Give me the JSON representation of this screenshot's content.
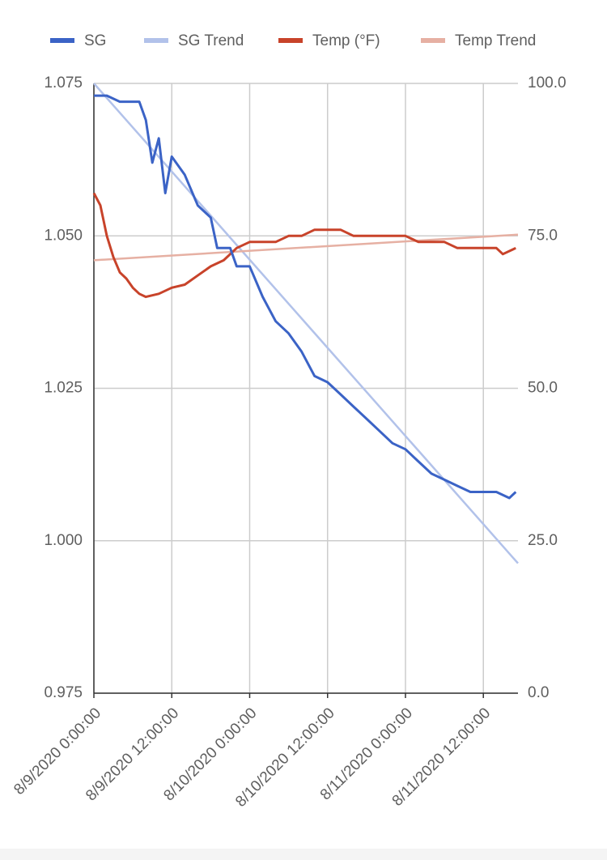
{
  "chart_data": {
    "type": "line",
    "series": [
      {
        "name": "SG",
        "color": "#3b63c6",
        "axis": "y",
        "width": 3,
        "x": [
          "8/9/2020 0:00:00",
          "8/9/2020 2:00:00",
          "8/9/2020 4:00:00",
          "8/9/2020 6:00:00",
          "8/9/2020 7:00:00",
          "8/9/2020 8:00:00",
          "8/9/2020 9:00:00",
          "8/9/2020 10:00:00",
          "8/9/2020 11:00:00",
          "8/9/2020 12:00:00",
          "8/9/2020 14:00:00",
          "8/9/2020 16:00:00",
          "8/9/2020 18:00:00",
          "8/9/2020 19:00:00",
          "8/9/2020 20:00:00",
          "8/9/2020 21:00:00",
          "8/9/2020 22:00:00",
          "8/10/2020 0:00:00",
          "8/10/2020 2:00:00",
          "8/10/2020 4:00:00",
          "8/10/2020 6:00:00",
          "8/10/2020 8:00:00",
          "8/10/2020 10:00:00",
          "8/10/2020 12:00:00",
          "8/10/2020 14:00:00",
          "8/10/2020 16:00:00",
          "8/10/2020 18:00:00",
          "8/10/2020 20:00:00",
          "8/10/2020 22:00:00",
          "8/11/2020 0:00:00",
          "8/11/2020 2:00:00",
          "8/11/2020 4:00:00",
          "8/11/2020 6:00:00",
          "8/11/2020 8:00:00",
          "8/11/2020 10:00:00",
          "8/11/2020 12:00:00",
          "8/11/2020 14:00:00",
          "8/11/2020 16:00:00",
          "8/11/2020 17:00:00"
        ],
        "values": [
          1.073,
          1.073,
          1.072,
          1.072,
          1.072,
          1.069,
          1.062,
          1.066,
          1.057,
          1.063,
          1.06,
          1.055,
          1.053,
          1.048,
          1.048,
          1.048,
          1.045,
          1.045,
          1.04,
          1.036,
          1.034,
          1.031,
          1.027,
          1.026,
          1.024,
          1.022,
          1.02,
          1.018,
          1.016,
          1.015,
          1.013,
          1.011,
          1.01,
          1.009,
          1.008,
          1.008,
          1.008,
          1.007,
          1.008
        ]
      },
      {
        "name": "SG Trend",
        "color": "#b2c2ea",
        "axis": "y",
        "width": 2.5,
        "x": [
          "8/9/2020 0:00:00",
          "8/11/2020 17:20:00"
        ],
        "values": [
          1.075,
          0.9963
        ]
      },
      {
        "name": "Temp (°F)",
        "color": "#c8432a",
        "axis": "y2",
        "width": 3,
        "x": [
          "8/9/2020 0:00:00",
          "8/9/2020 1:00:00",
          "8/9/2020 2:00:00",
          "8/9/2020 3:00:00",
          "8/9/2020 4:00:00",
          "8/9/2020 5:00:00",
          "8/9/2020 6:00:00",
          "8/9/2020 7:00:00",
          "8/9/2020 8:00:00",
          "8/9/2020 10:00:00",
          "8/9/2020 12:00:00",
          "8/9/2020 14:00:00",
          "8/9/2020 16:00:00",
          "8/9/2020 18:00:00",
          "8/9/2020 20:00:00",
          "8/9/2020 22:00:00",
          "8/10/2020 0:00:00",
          "8/10/2020 4:00:00",
          "8/10/2020 6:00:00",
          "8/10/2020 8:00:00",
          "8/10/2020 10:00:00",
          "8/10/2020 14:00:00",
          "8/10/2020 16:00:00",
          "8/11/2020 0:00:00",
          "8/11/2020 2:00:00",
          "8/11/2020 6:00:00",
          "8/11/2020 8:00:00",
          "8/11/2020 14:00:00",
          "8/11/2020 15:00:00",
          "8/11/2020 17:00:00"
        ],
        "values": [
          82,
          80,
          75,
          71.5,
          69,
          68,
          66.5,
          65.5,
          65,
          65.5,
          66.5,
          67,
          68.5,
          70,
          71,
          73,
          74,
          74,
          75,
          75,
          76,
          76,
          75,
          75,
          74,
          74,
          73,
          73,
          72,
          73
        ]
      },
      {
        "name": "Temp Trend",
        "color": "#e6b0a3",
        "axis": "y2",
        "width": 2.5,
        "x": [
          "8/9/2020 0:00:00",
          "8/11/2020 17:20:00"
        ],
        "values": [
          71,
          75.2
        ]
      }
    ],
    "xlim": [
      "8/9/2020 0:00:00",
      "8/11/2020 17:20:00"
    ],
    "xticks": [
      "8/9/2020 0:00:00",
      "8/9/2020 12:00:00",
      "8/10/2020 0:00:00",
      "8/10/2020 12:00:00",
      "8/11/2020 0:00:00",
      "8/11/2020 12:00:00"
    ],
    "ylim": [
      0.975,
      1.075
    ],
    "yticks": [
      0.975,
      1.025,
      {
        "value": 1.0,
        "label": "1.000"
      },
      {
        "value": 1.05,
        "label": "1.050"
      },
      1.075
    ],
    "y2lim": [
      0,
      100
    ],
    "y2ticks": [
      {
        "value": 0,
        "label": "0.0"
      },
      {
        "value": 25,
        "label": "25.0"
      },
      {
        "value": 50,
        "label": "50.0"
      },
      {
        "value": 75,
        "label": "75.0"
      },
      {
        "value": 100,
        "label": "100.0"
      }
    ],
    "grid": true,
    "legend": "top"
  }
}
